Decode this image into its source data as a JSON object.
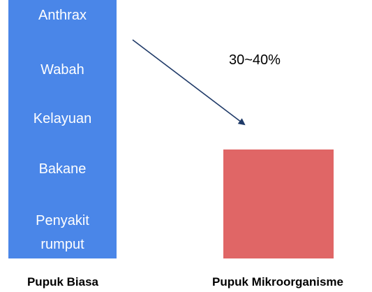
{
  "left_box": {
    "items": [
      "Anthrax",
      "Wabah",
      "Kelayuan",
      "Bakane",
      "Penyakit rumput"
    ],
    "caption": "Pupuk Biasa"
  },
  "right_box": {
    "caption": "Pupuk Mikroorganisme"
  },
  "arrow_label": "30~40%"
}
